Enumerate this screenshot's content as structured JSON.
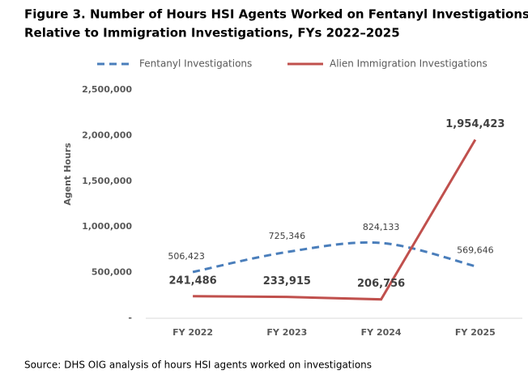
{
  "chart_data": {
    "type": "line",
    "title": [
      "Figure 3. Number of Hours HSI Agents Worked on Fentanyl Investigations",
      "Relative to Immigration Investigations, FYs 2022–2025"
    ],
    "y_label": "Agent Hours",
    "categories": [
      "FY 2022",
      "FY 2023",
      "FY 2024",
      "FY 2025"
    ],
    "series": [
      {
        "name": "Fentanyl Investigations",
        "color": "#4a7ebb",
        "dashed": true,
        "smooth": true,
        "values": [
          506423,
          725346,
          824133,
          569646
        ],
        "value_labels": [
          "506,423",
          "725,346",
          "824,133",
          "569,646"
        ]
      },
      {
        "name": "Alien Immigration Investigations",
        "color": "#c0504d",
        "dashed": false,
        "smooth": false,
        "values": [
          241486,
          233915,
          206756,
          1954423
        ],
        "value_labels": [
          "241,486",
          "233,915",
          "206,756",
          "1,954,423"
        ]
      }
    ],
    "ylim": [
      0,
      2500000
    ],
    "yticks": [
      {
        "value": 0,
        "label": "-"
      },
      {
        "value": 500000,
        "label": "500,000"
      },
      {
        "value": 1000000,
        "label": "1,000,000"
      },
      {
        "value": 1500000,
        "label": "1,500,000"
      },
      {
        "value": 2000000,
        "label": "2,000,000"
      },
      {
        "value": 2500000,
        "label": "2,500,000"
      }
    ],
    "grid": false,
    "source": "Source: DHS OIG analysis of hours HSI agents worked on investigations"
  }
}
